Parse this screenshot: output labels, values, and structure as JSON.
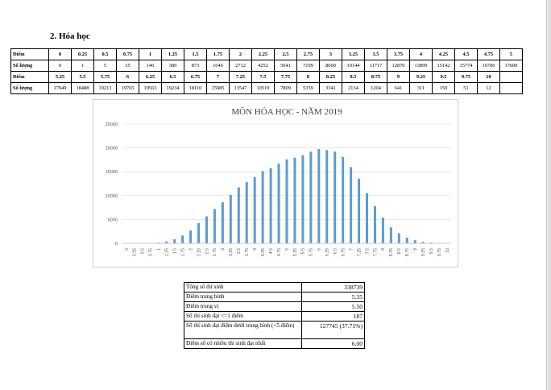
{
  "section": {
    "heading": "2.  Hóa học"
  },
  "score_table": {
    "row1": {
      "score_label": "Điểm",
      "count_label": "Số lượng",
      "scores": [
        "0",
        "0.25",
        "0.5",
        "0.75",
        "1",
        "1.25",
        "1.5",
        "1.75",
        "2",
        "2.25",
        "2.5",
        "2.75",
        "3",
        "3.25",
        "3.5",
        "3.75",
        "4",
        "4.25",
        "4.5",
        "4.75",
        "5"
      ],
      "counts": [
        "0",
        "1",
        "5",
        "35",
        "146",
        "389",
        "873",
        "1646",
        "2712",
        "4252",
        "5641",
        "7199",
        "8600",
        "10144",
        "11717",
        "12870",
        "13899",
        "15142",
        "15774",
        "16700",
        "17609"
      ]
    },
    "row2": {
      "score_label": "Điểm",
      "count_label": "Số lượng",
      "scores": [
        "5.25",
        "5.5",
        "5.75",
        "6",
        "6.25",
        "6.5",
        "6.75",
        "7",
        "7.25",
        "7.5",
        "7.75",
        "8",
        "8.25",
        "8.5",
        "8.75",
        "9",
        "9.25",
        "9.5",
        "9.75",
        "10"
      ],
      "counts": [
        "17949",
        "18488",
        "19213",
        "19765",
        "19563",
        "19234",
        "18110",
        "15985",
        "13547",
        "10519",
        "7809",
        "5359",
        "3341",
        "2134",
        "1204",
        "641",
        "311",
        "150",
        "51",
        "12"
      ]
    }
  },
  "chart_data": {
    "type": "bar",
    "title": "MÔN HÓA HỌC - NĂM 2019",
    "xlabel": "",
    "ylabel": "",
    "ylim": [
      0,
      25000
    ],
    "yticks": [
      0,
      5000,
      10000,
      15000,
      20000,
      25000
    ],
    "grid": true,
    "bar_color": "#5b9bd5",
    "categories": [
      "0",
      "0.25",
      "0.5",
      "0.75",
      "1",
      "1.25",
      "1.5",
      "1.75",
      "2",
      "2.25",
      "2.5",
      "2.75",
      "3",
      "3.25",
      "3.5",
      "3.75",
      "4",
      "4.25",
      "4.5",
      "4.75",
      "5",
      "5.25",
      "5.5",
      "5.75",
      "6",
      "6.25",
      "6.5",
      "6.75",
      "7",
      "7.25",
      "7.5",
      "7.75",
      "8",
      "8.25",
      "8.5",
      "8.75",
      "9",
      "9.25",
      "9.5",
      "9.75",
      "10"
    ],
    "values": [
      0,
      1,
      5,
      35,
      146,
      389,
      873,
      1646,
      2712,
      4252,
      5641,
      7199,
      8600,
      10144,
      11717,
      12870,
      13899,
      15142,
      15774,
      16700,
      17609,
      17949,
      18488,
      19213,
      19765,
      19563,
      19234,
      18110,
      15985,
      13547,
      10519,
      7809,
      5359,
      3341,
      2134,
      1204,
      641,
      311,
      150,
      51,
      12
    ]
  },
  "summary": {
    "rows": [
      {
        "label": "Tổng số thí sinh",
        "value": "338739"
      },
      {
        "label": "Điểm trung bình",
        "value": "5.35"
      },
      {
        "label": "Điểm trung vị",
        "value": "5.50"
      },
      {
        "label": "Số thí sinh đạt <=1 điểm",
        "value": "187"
      },
      {
        "label": "Số thí sinh đạt điểm dưới trung bình (<5 điểm)",
        "value": "127745 (37.71%)"
      },
      {
        "label": "Điểm số có nhiều thí sinh đạt nhất",
        "value": "6.00"
      }
    ]
  }
}
